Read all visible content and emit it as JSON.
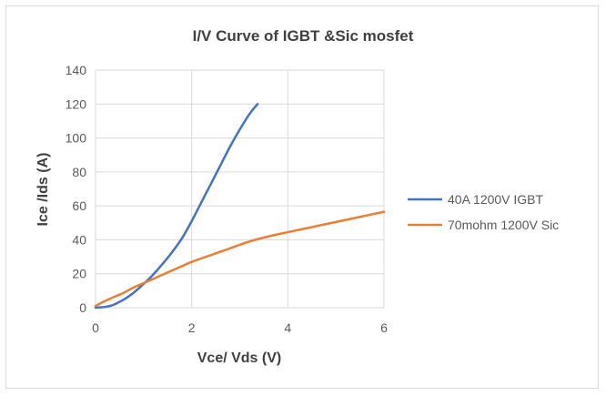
{
  "chart_data": {
    "type": "line",
    "title": "I/V Curve of IGBT &Sic mosfet",
    "xlabel": "Vce/ Vds (V)",
    "ylabel": "Ice /Ids (A)",
    "xlim": [
      0,
      6
    ],
    "ylim": [
      0,
      140
    ],
    "x_ticks": [
      "0",
      "2",
      "4",
      "6"
    ],
    "y_ticks": [
      "0",
      "20",
      "40",
      "60",
      "80",
      "100",
      "120",
      "140"
    ],
    "grid": true,
    "legend_position": "right",
    "series": [
      {
        "name": "40A 1200V IGBT",
        "color": "#4472c4",
        "x": [
          0.0,
          0.1,
          0.2,
          0.3,
          0.4,
          0.5,
          0.6,
          0.8,
          1.0,
          1.2,
          1.4,
          1.6,
          1.8,
          2.0,
          2.2,
          2.4,
          2.6,
          2.8,
          3.0,
          3.2,
          3.37
        ],
        "y": [
          0,
          0.2,
          0.5,
          1,
          2,
          3.5,
          5,
          9,
          14,
          19.5,
          26,
          33,
          41,
          51,
          62,
          73,
          84,
          95,
          105,
          114,
          120
        ]
      },
      {
        "name": "70mohm 1200V Sic",
        "color": "#ed7d31",
        "x": [
          0.0,
          0.2,
          0.4,
          0.6,
          0.8,
          1.0,
          1.2,
          1.4,
          1.6,
          1.8,
          2.0,
          2.4,
          2.8,
          3.2,
          3.6,
          4.0,
          4.5,
          5.0,
          5.5,
          6.0
        ],
        "y": [
          1,
          4,
          6.5,
          9,
          12,
          14.5,
          17,
          19.5,
          22,
          24.5,
          27,
          31,
          35,
          39,
          42,
          44.5,
          47.5,
          50.5,
          53.5,
          56.5
        ]
      }
    ]
  }
}
